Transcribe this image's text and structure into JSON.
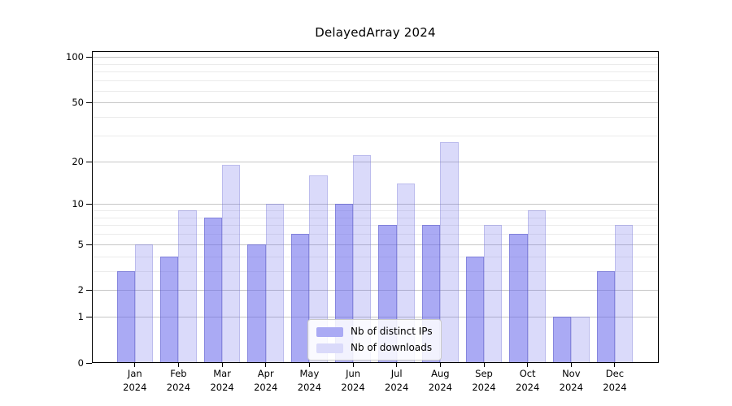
{
  "background": "#ffffff",
  "chart_data": {
    "type": "bar",
    "title": "DelayedArray 2024",
    "categories": [
      "Jan 2024",
      "Feb 2024",
      "Mar 2024",
      "Apr 2024",
      "May 2024",
      "Jun 2024",
      "Jul 2024",
      "Aug 2024",
      "Sep 2024",
      "Oct 2024",
      "Nov 2024",
      "Dec 2024"
    ],
    "series": [
      {
        "name": "Nb of distinct IPs",
        "slug": "distinct-ips",
        "values": [
          3,
          4,
          8,
          5,
          6,
          10,
          7,
          7,
          4,
          6,
          1,
          3
        ],
        "bar_fill": "rgba(100,100,235,0.55)",
        "bar_border": "rgba(80,80,190,0.40)",
        "legend_color": "#aaaaf4"
      },
      {
        "name": "Nb of downloads",
        "slug": "downloads",
        "values": [
          5,
          9,
          19,
          10,
          16,
          22,
          14,
          27,
          7,
          9,
          1,
          7
        ],
        "bar_fill": "rgba(100,100,235,0.24)",
        "bar_border": "rgba(120,120,210,0.30)",
        "legend_color": "#dadafa"
      }
    ],
    "yscale": "log1p",
    "ylim": [
      0,
      110
    ],
    "y_tick_labels": [
      "100",
      "50",
      "20",
      "10",
      "5",
      "2",
      "1",
      "0"
    ],
    "y_major_gridlines": [
      1,
      2,
      5,
      10,
      20,
      50,
      100
    ],
    "y_minor_gridlines": [
      3,
      4,
      6,
      7,
      8,
      9,
      30,
      40,
      60,
      70,
      80,
      90
    ],
    "x_tick_labels": [
      {
        "top": "Jan",
        "bottom": "2024"
      },
      {
        "top": "Feb",
        "bottom": "2024"
      },
      {
        "top": "Mar",
        "bottom": "2024"
      },
      {
        "top": "Apr",
        "bottom": "2024"
      },
      {
        "top": "May",
        "bottom": "2024"
      },
      {
        "top": "Jun",
        "bottom": "2024"
      },
      {
        "top": "Jul",
        "bottom": "2024"
      },
      {
        "top": "Aug",
        "bottom": "2024"
      },
      {
        "top": "Sep",
        "bottom": "2024"
      },
      {
        "top": "Oct",
        "bottom": "2024"
      },
      {
        "top": "Nov",
        "bottom": "2024"
      },
      {
        "top": "Dec",
        "bottom": "2024"
      }
    ],
    "legend_position": "lower-center",
    "grid": true
  }
}
